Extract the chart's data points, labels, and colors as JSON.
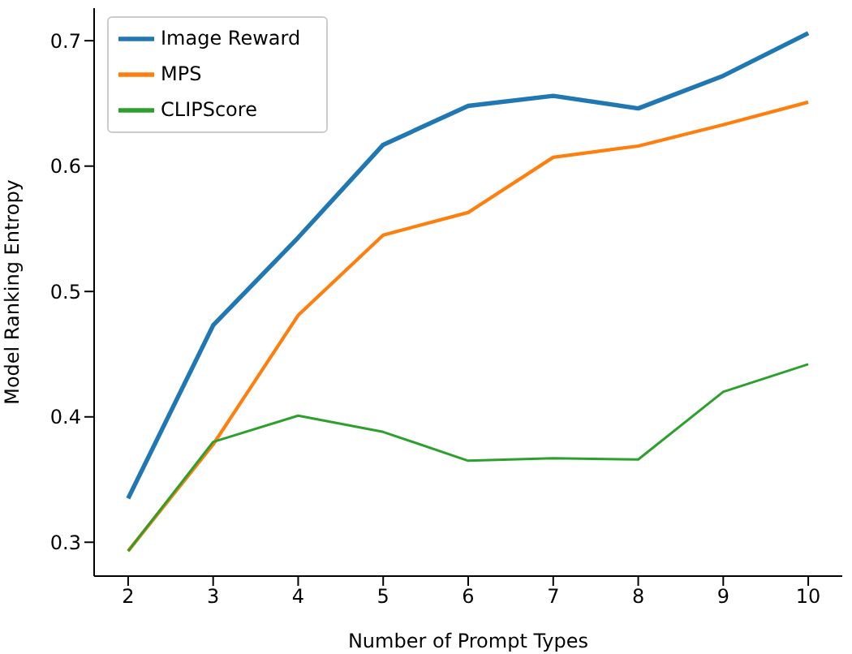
{
  "chart_data": {
    "type": "line",
    "xlabel": "Number of Prompt Types",
    "ylabel": "Model Ranking Entropy",
    "x": [
      2,
      3,
      4,
      5,
      6,
      7,
      8,
      9,
      10
    ],
    "series": [
      {
        "name": "Image Reward",
        "color": "#1f77b4",
        "values": [
          0.335,
          0.473,
          0.543,
          0.617,
          0.648,
          0.656,
          0.646,
          0.672,
          0.706
        ]
      },
      {
        "name": "MPS",
        "color": "#ff7f0e",
        "values": [
          0.293,
          0.378,
          0.481,
          0.545,
          0.563,
          0.607,
          0.616,
          0.633,
          0.651
        ]
      },
      {
        "name": "CLIPScore",
        "color": "#2ca02c",
        "values": [
          0.293,
          0.38,
          0.401,
          0.388,
          0.365,
          0.367,
          0.366,
          0.42,
          0.442
        ]
      }
    ],
    "xlim": [
      1.6,
      10.4
    ],
    "xticks": [
      2,
      3,
      4,
      5,
      6,
      7,
      8,
      9,
      10
    ],
    "ylim": [
      0.273,
      0.726
    ],
    "yticks": [
      0.3,
      0.4,
      0.5,
      0.6,
      0.7
    ],
    "grid": false,
    "legend": "top left",
    "marker": "none",
    "line_style": "solid"
  }
}
